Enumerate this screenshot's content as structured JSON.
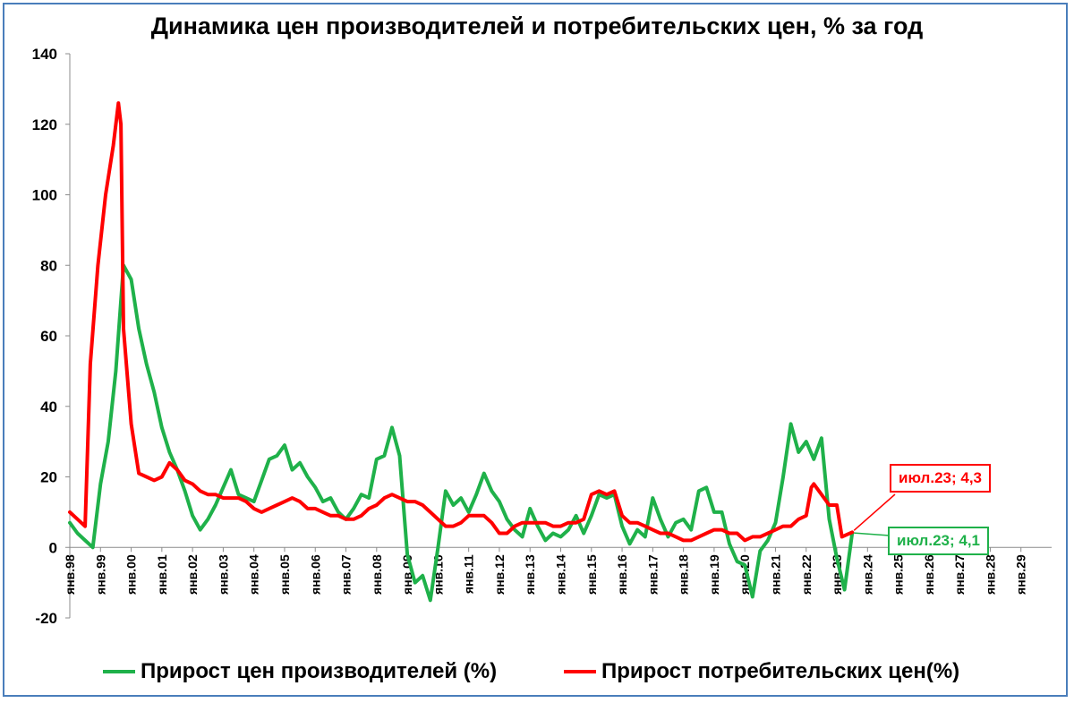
{
  "title": "Динамика цен производителей и потребительских цен, % за год",
  "chart_data": {
    "type": "line",
    "title": "Динамика цен производителей и потребительских цен, % за год",
    "ylim": [
      -20,
      140
    ],
    "y_ticks": [
      "140",
      "120",
      "100",
      "80",
      "60",
      "40",
      "20",
      "0",
      "-20"
    ],
    "xlim": [
      "янв.98",
      "янв.30"
    ],
    "x_tick_labels": [
      "янв.98",
      "янв.99",
      "янв.00",
      "янв.01",
      "янв.02",
      "янв.03",
      "янв.04",
      "янв.05",
      "янв.06",
      "янв.07",
      "янв.08",
      "янв.09",
      "янв.10",
      "янв.11",
      "янв.12",
      "янв.13",
      "янв.14",
      "янв.15",
      "янв.16",
      "янв.17",
      "янв.18",
      "янв.19",
      "янв.20",
      "янв.21",
      "янв.22",
      "янв.23",
      "янв.24",
      "янв.25",
      "янв.26",
      "янв.27",
      "янв.28",
      "янв.29"
    ],
    "grid": false,
    "legend_position": "bottom",
    "series": [
      {
        "name": "Прирост цен производителей (%)",
        "color": "#1fb14a",
        "points": [
          [
            "1998-01",
            7
          ],
          [
            "1998-04",
            4
          ],
          [
            "1998-07",
            2
          ],
          [
            "1998-10",
            0
          ],
          [
            "1999-01",
            18
          ],
          [
            "1999-04",
            30
          ],
          [
            "1999-07",
            50
          ],
          [
            "1999-10",
            80
          ],
          [
            "2000-01",
            76
          ],
          [
            "2000-04",
            62
          ],
          [
            "2000-07",
            52
          ],
          [
            "2000-10",
            44
          ],
          [
            "2001-01",
            34
          ],
          [
            "2001-04",
            27
          ],
          [
            "2001-07",
            22
          ],
          [
            "2001-10",
            16
          ],
          [
            "2002-01",
            9
          ],
          [
            "2002-04",
            5
          ],
          [
            "2002-07",
            8
          ],
          [
            "2002-10",
            12
          ],
          [
            "2003-01",
            17
          ],
          [
            "2003-04",
            22
          ],
          [
            "2003-07",
            15
          ],
          [
            "2003-10",
            14
          ],
          [
            "2004-01",
            13
          ],
          [
            "2004-04",
            19
          ],
          [
            "2004-07",
            25
          ],
          [
            "2004-10",
            26
          ],
          [
            "2005-01",
            29
          ],
          [
            "2005-04",
            22
          ],
          [
            "2005-07",
            24
          ],
          [
            "2005-10",
            20
          ],
          [
            "2006-01",
            17
          ],
          [
            "2006-04",
            13
          ],
          [
            "2006-07",
            14
          ],
          [
            "2006-10",
            10
          ],
          [
            "2007-01",
            8
          ],
          [
            "2007-04",
            11
          ],
          [
            "2007-07",
            15
          ],
          [
            "2007-10",
            14
          ],
          [
            "2008-01",
            25
          ],
          [
            "2008-04",
            26
          ],
          [
            "2008-07",
            34
          ],
          [
            "2008-10",
            26
          ],
          [
            "2009-01",
            -2
          ],
          [
            "2009-04",
            -10
          ],
          [
            "2009-07",
            -8
          ],
          [
            "2009-10",
            -15
          ],
          [
            "2010-01",
            0
          ],
          [
            "2010-04",
            16
          ],
          [
            "2010-07",
            12
          ],
          [
            "2010-10",
            14
          ],
          [
            "2011-01",
            10
          ],
          [
            "2011-04",
            15
          ],
          [
            "2011-07",
            21
          ],
          [
            "2011-10",
            16
          ],
          [
            "2012-01",
            13
          ],
          [
            "2012-04",
            8
          ],
          [
            "2012-07",
            5
          ],
          [
            "2012-10",
            3
          ],
          [
            "2013-01",
            11
          ],
          [
            "2013-04",
            6
          ],
          [
            "2013-07",
            2
          ],
          [
            "2013-10",
            4
          ],
          [
            "2014-01",
            3
          ],
          [
            "2014-04",
            5
          ],
          [
            "2014-07",
            9
          ],
          [
            "2014-10",
            4
          ],
          [
            "2015-01",
            9
          ],
          [
            "2015-04",
            15
          ],
          [
            "2015-07",
            14
          ],
          [
            "2015-10",
            15
          ],
          [
            "2016-01",
            6
          ],
          [
            "2016-04",
            1
          ],
          [
            "2016-07",
            5
          ],
          [
            "2016-10",
            3
          ],
          [
            "2017-01",
            14
          ],
          [
            "2017-04",
            8
          ],
          [
            "2017-07",
            3
          ],
          [
            "2017-10",
            7
          ],
          [
            "2018-01",
            8
          ],
          [
            "2018-04",
            5
          ],
          [
            "2018-07",
            16
          ],
          [
            "2018-10",
            17
          ],
          [
            "2019-01",
            10
          ],
          [
            "2019-04",
            10
          ],
          [
            "2019-07",
            1
          ],
          [
            "2019-10",
            -4
          ],
          [
            "2020-01",
            -5
          ],
          [
            "2020-04",
            -14
          ],
          [
            "2020-07",
            -1
          ],
          [
            "2020-10",
            2
          ],
          [
            "2021-01",
            7
          ],
          [
            "2021-04",
            20
          ],
          [
            "2021-07",
            35
          ],
          [
            "2021-10",
            27
          ],
          [
            "2022-01",
            30
          ],
          [
            "2022-04",
            25
          ],
          [
            "2022-07",
            31
          ],
          [
            "2022-10",
            8
          ],
          [
            "2023-01",
            -3
          ],
          [
            "2023-04",
            -12
          ],
          [
            "2023-07",
            4.1
          ]
        ]
      },
      {
        "name": "Прирост потребительских цен(%)",
        "color": "#ff0000",
        "points": [
          [
            "1998-01",
            10
          ],
          [
            "1998-04",
            8
          ],
          [
            "1998-07",
            6
          ],
          [
            "1998-09",
            52
          ],
          [
            "1998-12",
            80
          ],
          [
            "1999-03",
            100
          ],
          [
            "1999-06",
            114
          ],
          [
            "1999-08",
            126
          ],
          [
            "1999-09",
            120
          ],
          [
            "1999-10",
            62
          ],
          [
            "2000-01",
            35
          ],
          [
            "2000-04",
            21
          ],
          [
            "2000-07",
            20
          ],
          [
            "2000-10",
            19
          ],
          [
            "2001-01",
            20
          ],
          [
            "2001-04",
            24
          ],
          [
            "2001-07",
            22
          ],
          [
            "2001-10",
            19
          ],
          [
            "2002-01",
            18
          ],
          [
            "2002-04",
            16
          ],
          [
            "2002-07",
            15
          ],
          [
            "2002-10",
            15
          ],
          [
            "2003-01",
            14
          ],
          [
            "2003-04",
            14
          ],
          [
            "2003-07",
            14
          ],
          [
            "2003-10",
            13
          ],
          [
            "2004-01",
            11
          ],
          [
            "2004-04",
            10
          ],
          [
            "2004-07",
            11
          ],
          [
            "2004-10",
            12
          ],
          [
            "2005-01",
            13
          ],
          [
            "2005-04",
            14
          ],
          [
            "2005-07",
            13
          ],
          [
            "2005-10",
            11
          ],
          [
            "2006-01",
            11
          ],
          [
            "2006-04",
            10
          ],
          [
            "2006-07",
            9
          ],
          [
            "2006-10",
            9
          ],
          [
            "2007-01",
            8
          ],
          [
            "2007-04",
            8
          ],
          [
            "2007-07",
            9
          ],
          [
            "2007-10",
            11
          ],
          [
            "2008-01",
            12
          ],
          [
            "2008-04",
            14
          ],
          [
            "2008-07",
            15
          ],
          [
            "2008-10",
            14
          ],
          [
            "2009-01",
            13
          ],
          [
            "2009-04",
            13
          ],
          [
            "2009-07",
            12
          ],
          [
            "2009-10",
            10
          ],
          [
            "2010-01",
            8
          ],
          [
            "2010-04",
            6
          ],
          [
            "2010-07",
            6
          ],
          [
            "2010-10",
            7
          ],
          [
            "2011-01",
            9
          ],
          [
            "2011-04",
            9
          ],
          [
            "2011-07",
            9
          ],
          [
            "2011-10",
            7
          ],
          [
            "2012-01",
            4
          ],
          [
            "2012-04",
            4
          ],
          [
            "2012-07",
            6
          ],
          [
            "2012-10",
            7
          ],
          [
            "2013-01",
            7
          ],
          [
            "2013-04",
            7
          ],
          [
            "2013-07",
            7
          ],
          [
            "2013-10",
            6
          ],
          [
            "2014-01",
            6
          ],
          [
            "2014-04",
            7
          ],
          [
            "2014-07",
            7
          ],
          [
            "2014-10",
            8
          ],
          [
            "2015-01",
            15
          ],
          [
            "2015-04",
            16
          ],
          [
            "2015-07",
            15
          ],
          [
            "2015-10",
            16
          ],
          [
            "2016-01",
            9
          ],
          [
            "2016-04",
            7
          ],
          [
            "2016-07",
            7
          ],
          [
            "2016-10",
            6
          ],
          [
            "2017-01",
            5
          ],
          [
            "2017-04",
            4
          ],
          [
            "2017-07",
            4
          ],
          [
            "2017-10",
            3
          ],
          [
            "2018-01",
            2
          ],
          [
            "2018-04",
            2
          ],
          [
            "2018-07",
            3
          ],
          [
            "2018-10",
            4
          ],
          [
            "2019-01",
            5
          ],
          [
            "2019-04",
            5
          ],
          [
            "2019-07",
            4
          ],
          [
            "2019-10",
            4
          ],
          [
            "2020-01",
            2
          ],
          [
            "2020-04",
            3
          ],
          [
            "2020-07",
            3
          ],
          [
            "2020-10",
            4
          ],
          [
            "2021-01",
            5
          ],
          [
            "2021-04",
            6
          ],
          [
            "2021-07",
            6
          ],
          [
            "2021-10",
            8
          ],
          [
            "2022-01",
            9
          ],
          [
            "2022-03",
            17
          ],
          [
            "2022-04",
            18
          ],
          [
            "2022-07",
            15
          ],
          [
            "2022-10",
            12
          ],
          [
            "2023-01",
            12
          ],
          [
            "2023-03",
            3
          ],
          [
            "2023-07",
            4.3
          ]
        ]
      }
    ],
    "annotations": [
      {
        "text": "июл.23; 4,3",
        "color": "#ff0000",
        "x": "2023-07",
        "y": 4.3
      },
      {
        "text": "июл.23; 4,1",
        "color": "#1fb14a",
        "x": "2023-07",
        "y": 4.1
      }
    ]
  },
  "legend": {
    "items": [
      {
        "label": "Прирост цен производителей (%)",
        "color": "#1fb14a"
      },
      {
        "label": "Прирост потребительских цен(%)",
        "color": "#ff0000"
      }
    ]
  }
}
